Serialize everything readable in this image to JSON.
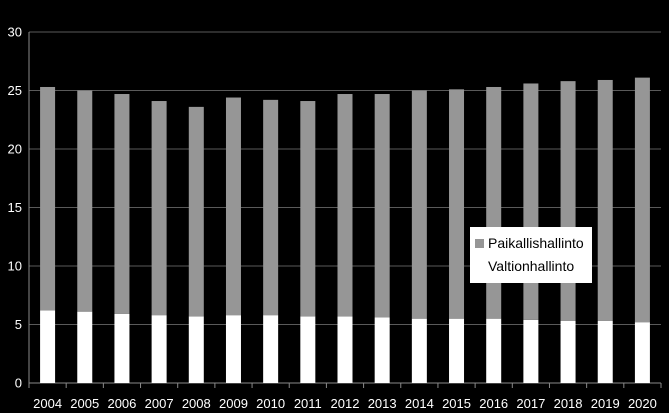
{
  "chart_data": {
    "type": "bar",
    "stacked": true,
    "title": "",
    "xlabel": "",
    "ylabel": "",
    "ylim": [
      0,
      30
    ],
    "yticks": [
      0,
      5,
      10,
      15,
      20,
      25,
      30
    ],
    "grid": true,
    "legend_position": "right",
    "categories": [
      "2004",
      "2005",
      "2006",
      "2007",
      "2008",
      "2009",
      "2010",
      "2011",
      "2012",
      "2013",
      "2014",
      "2015",
      "2016",
      "2017",
      "2018",
      "2019",
      "2020"
    ],
    "series": [
      {
        "name": "Valtionhallinto",
        "color": "#ffffff",
        "values": [
          6.2,
          6.1,
          5.9,
          5.8,
          5.7,
          5.8,
          5.8,
          5.7,
          5.7,
          5.6,
          5.5,
          5.5,
          5.5,
          5.4,
          5.3,
          5.3,
          5.2
        ]
      },
      {
        "name": "Paikallishallinto",
        "color": "#969696",
        "values": [
          19.1,
          18.9,
          18.8,
          18.3,
          17.9,
          18.6,
          18.4,
          18.4,
          19.0,
          19.1,
          19.5,
          19.6,
          19.8,
          20.2,
          20.5,
          20.6,
          20.9
        ]
      }
    ],
    "legend": [
      {
        "label": "Paikallishallinto",
        "color": "#969696"
      },
      {
        "label": "Valtionhallinto",
        "color": "#ffffff"
      }
    ],
    "colors": {
      "background": "#000000",
      "axis": "#8a8a8a",
      "grid": "#5a5a5a",
      "legend_bg": "#ffffff"
    }
  }
}
